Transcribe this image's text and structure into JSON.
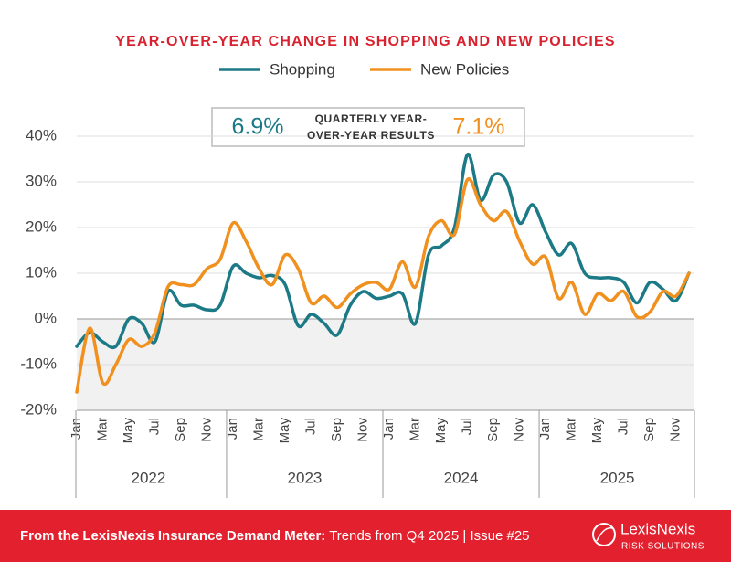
{
  "chart_data": {
    "type": "line",
    "title": "YEAR-OVER-YEAR CHANGE IN SHOPPING AND NEW POLICIES",
    "categories": [
      "Jan",
      null,
      "Mar",
      null,
      "May",
      null,
      "Jul",
      null,
      "Sep",
      null,
      "Nov",
      null,
      "Jan",
      null,
      "Mar",
      null,
      "May",
      null,
      "Jul",
      null,
      "Sep",
      null,
      "Nov",
      null,
      "Jan",
      null,
      "Mar",
      null,
      "May",
      null,
      "Jul",
      null,
      "Sep",
      null,
      "Nov",
      null,
      "Jan",
      null,
      "Mar",
      null,
      "May",
      null,
      "Jul",
      null,
      "Sep",
      null,
      "Nov",
      null
    ],
    "years": [
      "2022",
      "2023",
      "2024",
      "2025"
    ],
    "series": [
      {
        "name": "Shopping",
        "color": "#1b7a86",
        "values": [
          -6,
          -3,
          -5,
          -6,
          0,
          -1,
          -5,
          6,
          3,
          3,
          2,
          3,
          11.5,
          10,
          9,
          9.5,
          7.5,
          -1.5,
          1,
          -1,
          -3.5,
          3,
          6,
          4.5,
          5,
          5.5,
          -1,
          14,
          16,
          20,
          36,
          26,
          31.5,
          30,
          21,
          25,
          19,
          14,
          16.5,
          10,
          9,
          9,
          8,
          3.5,
          8,
          6.5,
          4,
          10
        ]
      },
      {
        "name": "New Policies",
        "color": "#f0901e",
        "values": [
          -16,
          -2,
          -14,
          -10,
          -4.5,
          -6,
          -3,
          7,
          7.5,
          7.5,
          11,
          13,
          21,
          17,
          11,
          7.5,
          14,
          11,
          3.5,
          5,
          2.5,
          5.5,
          7.5,
          8,
          6.5,
          12.5,
          7,
          18,
          21.5,
          18.5,
          30.5,
          25,
          21.5,
          23.5,
          17,
          12,
          13.5,
          4.5,
          8,
          1,
          5.5,
          4,
          6,
          0.5,
          1.5,
          6,
          5,
          10
        ]
      }
    ],
    "ylim": [
      -20,
      40
    ],
    "yticks": [
      {
        "value": -20,
        "label": "-20%"
      },
      {
        "value": -10,
        "label": "-10%"
      },
      {
        "value": 0,
        "label": "0%"
      },
      {
        "value": 10,
        "label": "10%"
      },
      {
        "value": 20,
        "label": "20%"
      },
      {
        "value": 30,
        "label": "30%"
      },
      {
        "value": 40,
        "label": "40%"
      }
    ],
    "grid": true,
    "summary": {
      "values": [
        6.9,
        7.1
      ],
      "value_labels": [
        "6.9%",
        "7.1%"
      ],
      "label": [
        "QUARTERLY YEAR-",
        "OVER-YEAR RESULTS"
      ]
    }
  },
  "footer": {
    "source": "From the LexisNexis Insurance Demand Meter:",
    "detail": "Trends from Q4 2025",
    "separator": "|",
    "issue": "Issue #25",
    "logo": "LexisNexis",
    "logo_sub": "RISK SOLUTIONS"
  }
}
